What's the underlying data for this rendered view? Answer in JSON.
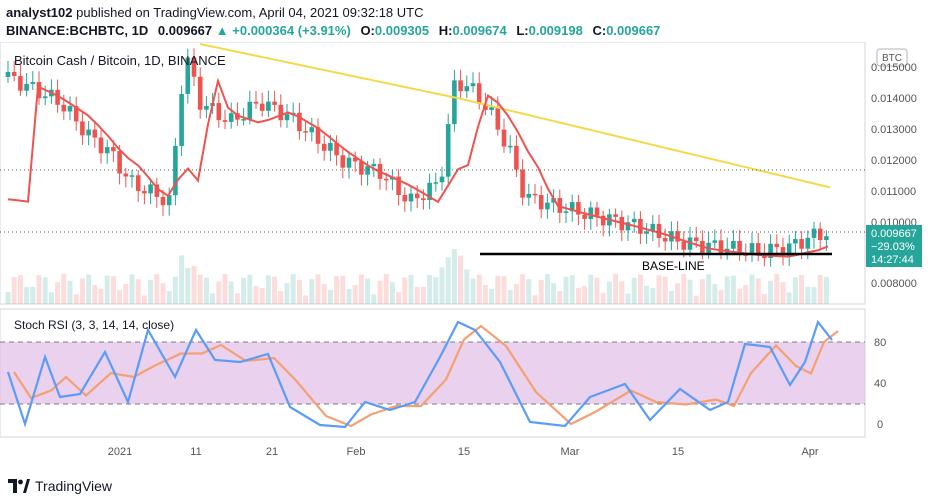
{
  "header": {
    "publisher": "analyst102",
    "published_text": "published on TradingView.com, April 04, 2021 09:32:18 UTC",
    "symbol": "BINANCE:BCHBTC, 1D",
    "last": "0.009667",
    "change": "+0.000364 (+3.91%)",
    "o_label": "O:",
    "o_value": "0.009305",
    "h_label": "H:",
    "h_value": "0.009674",
    "l_label": "L:",
    "l_value": "0.009198",
    "c_label": "C:",
    "c_value": "0.009667"
  },
  "chart": {
    "legend_title": "Bitcoin Cash / Bitcoin, 1D, BINANCE",
    "currency_badge": "BTC",
    "price_ticks": [
      "0.015000",
      "0.014000",
      "0.013000",
      "0.012000",
      "0.011000",
      "0.010000",
      "0.008000"
    ],
    "price_tag": {
      "price": "0.009667",
      "change": "−29.03%",
      "countdown": "14:27:44"
    },
    "annotation": "BASE-LINE",
    "stoch_label": "Stoch RSI (3, 3, 14, 14, close)",
    "stoch_ticks": [
      "80",
      "40",
      "0"
    ],
    "x_ticks": [
      "2021",
      "11",
      "21",
      "Feb",
      "15",
      "Mar",
      "15",
      "Apr"
    ]
  },
  "footer": {
    "brand": "TradingView"
  },
  "colors": {
    "bull": "#26a69a",
    "bear": "#ef5350",
    "ema_fast": "#ef5350",
    "ema_slow": "#f5d94b",
    "stoch_k": "#5b9cf6",
    "stoch_d": "#f4a073",
    "band": "#e1bee7"
  }
}
